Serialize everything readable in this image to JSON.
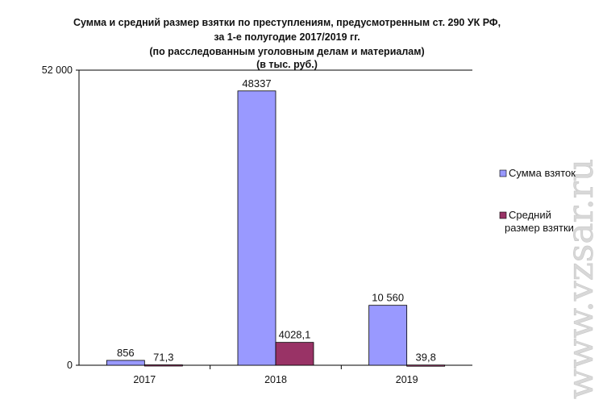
{
  "chart_data": {
    "type": "bar",
    "title_lines": [
      "Сумма и средний размер взятки по преступлениям, предусмотренным ст. 290 УК РФ,",
      "за  1-е полугодие 2017/2019 гг.",
      "(по расследованным уголовным делам и материалам)",
      "(в тыс. руб.)"
    ],
    "categories": [
      "2017",
      "2018",
      "2019"
    ],
    "series": [
      {
        "name": "Сумма взяток",
        "color": "#9999ff",
        "values": [
          856,
          48337,
          10560
        ],
        "labels": [
          "856",
          "48337",
          "10 560"
        ]
      },
      {
        "name": "Средний размер взятки",
        "color": "#993366",
        "values": [
          71.3,
          4028.1,
          39.8
        ],
        "labels": [
          "71,3",
          "4028,1",
          "39,8"
        ]
      }
    ],
    "ylim": [
      0,
      52000
    ],
    "yticks": [
      "0",
      "52 000"
    ],
    "ytick_values": [
      0,
      52000
    ],
    "legend_position": "right",
    "grid": false
  },
  "watermark": "www.vzsar.ru"
}
